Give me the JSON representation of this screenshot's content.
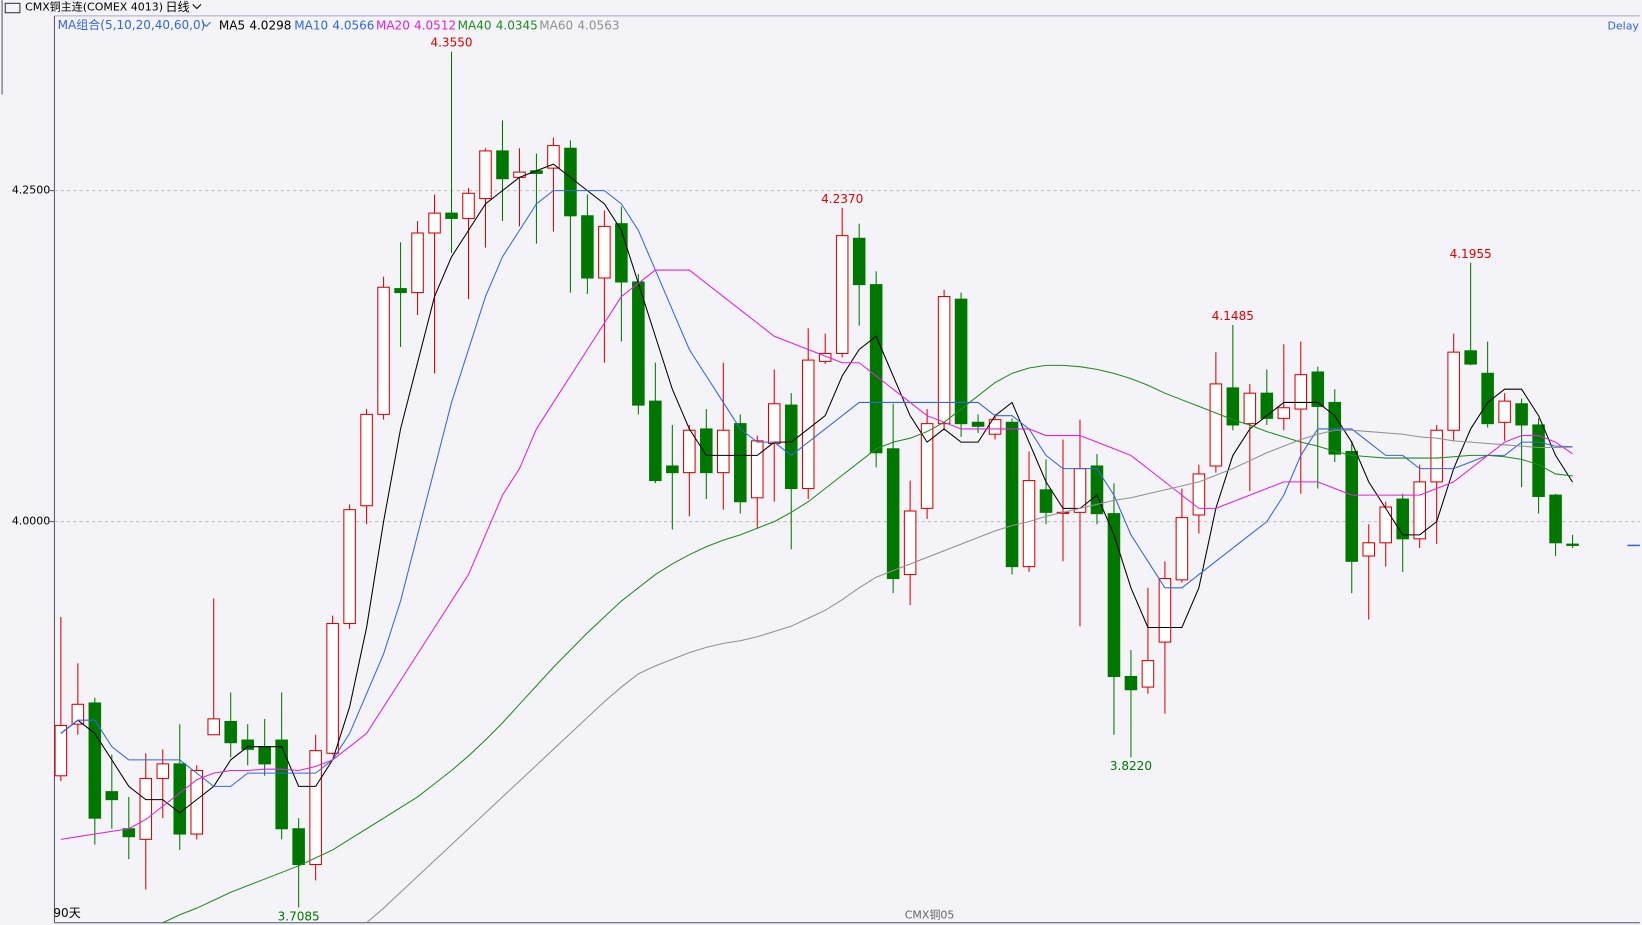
{
  "header": {
    "title": "CMX铜主连(COMEX 4013)",
    "period": "日线",
    "ma_group": "MA组合(5,10,20,40,60,0)",
    "delay": "Delay",
    "range": "90天",
    "contract": "CMX铜05"
  },
  "chart_data": {
    "type": "candlestick",
    "ylim": [
      3.697,
      4.382
    ],
    "yticks": [
      {
        "value": 4.0,
        "label": "4.0000"
      },
      {
        "value": 4.25,
        "label": "4.2500"
      }
    ],
    "grid": true,
    "up_color": "#e00000",
    "down_color": "#007800",
    "open": [
      3.808,
      3.847,
      3.863,
      3.796,
      3.768,
      3.76,
      3.806,
      3.817,
      3.764,
      3.839,
      3.849,
      3.835,
      3.83,
      3.835,
      3.768,
      3.741,
      3.825,
      3.923,
      4.012,
      4.081,
      4.176,
      4.173,
      4.218,
      4.233,
      4.229,
      4.244,
      4.28,
      4.26,
      4.265,
      4.267,
      4.282,
      4.231,
      4.184,
      4.225,
      4.181,
      4.091,
      4.042,
      4.037,
      4.07,
      4.037,
      4.074,
      4.018,
      4.059,
      4.088,
      4.025,
      4.121,
      4.127,
      4.214,
      4.179,
      4.055,
      3.96,
      4.01,
      4.074,
      4.168,
      4.075,
      4.066,
      4.075,
      3.966,
      4.024,
      4.007,
      4.007,
      4.042,
      4.006,
      3.883,
      3.875,
      3.909,
      3.956,
      4.005,
      4.042,
      4.101,
      4.074,
      4.097,
      4.078,
      4.085,
      4.113,
      4.09,
      4.053,
      3.974,
      3.984,
      4.017,
      3.987,
      4.03,
      4.069,
      4.129,
      4.112,
      4.075,
      4.089,
      4.073,
      4.02,
      3.983
    ],
    "high": [
      3.928,
      3.893,
      3.867,
      3.824,
      3.792,
      3.825,
      3.828,
      3.847,
      3.816,
      3.942,
      3.871,
      3.847,
      3.851,
      3.871,
      3.776,
      3.839,
      3.929,
      4.013,
      4.085,
      4.185,
      4.211,
      4.227,
      4.247,
      4.355,
      4.252,
      4.282,
      4.303,
      4.282,
      4.278,
      4.29,
      4.288,
      4.247,
      4.235,
      4.238,
      4.187,
      4.12,
      4.073,
      4.073,
      4.085,
      4.12,
      4.081,
      4.065,
      4.115,
      4.097,
      4.146,
      4.142,
      4.237,
      4.225,
      4.189,
      4.089,
      4.031,
      4.085,
      4.175,
      4.173,
      4.081,
      4.081,
      4.078,
      4.053,
      4.047,
      4.062,
      4.077,
      4.051,
      4.029,
      3.903,
      3.95,
      3.97,
      4.025,
      4.043,
      4.128,
      4.1485,
      4.104,
      4.115,
      4.134,
      4.136,
      4.117,
      4.1,
      4.061,
      3.998,
      4.015,
      4.021,
      4.043,
      4.073,
      4.142,
      4.1955,
      4.136,
      4.097,
      4.093,
      4.078,
      4.021,
      3.99
    ],
    "low": [
      3.804,
      3.839,
      3.756,
      3.768,
      3.745,
      3.722,
      3.776,
      3.752,
      3.76,
      3.839,
      3.822,
      3.816,
      3.808,
      3.76,
      3.7085,
      3.729,
      3.824,
      3.919,
      3.998,
      4.077,
      4.132,
      4.156,
      4.112,
      4.203,
      4.168,
      4.207,
      4.227,
      4.223,
      4.21,
      4.219,
      4.173,
      4.172,
      4.12,
      4.136,
      4.081,
      4.029,
      3.994,
      4.004,
      4.017,
      4.009,
      4.006,
      3.995,
      4.015,
      3.979,
      4.017,
      4.119,
      4.124,
      4.148,
      4.041,
      3.946,
      3.937,
      4.002,
      4.069,
      4.064,
      4.067,
      4.062,
      3.96,
      3.962,
      3.998,
      3.97,
      3.921,
      3.998,
      3.839,
      3.822,
      3.87,
      3.855,
      3.954,
      3.991,
      4.037,
      4.069,
      4.023,
      4.073,
      4.069,
      4.021,
      4.025,
      4.045,
      3.946,
      3.926,
      3.966,
      3.962,
      3.98,
      3.983,
      4.061,
      4.118,
      4.071,
      4.061,
      4.026,
      4.006,
      3.974,
      3.98
    ],
    "close": [
      3.846,
      3.862,
      3.776,
      3.79,
      3.762,
      3.806,
      3.817,
      3.764,
      3.812,
      3.851,
      3.833,
      3.828,
      3.817,
      3.768,
      3.741,
      3.827,
      3.923,
      4.009,
      4.081,
      4.177,
      4.173,
      4.218,
      4.233,
      4.229,
      4.248,
      4.28,
      4.259,
      4.264,
      4.263,
      4.284,
      4.231,
      4.184,
      4.223,
      4.181,
      4.088,
      4.031,
      4.037,
      4.069,
      4.037,
      4.069,
      4.015,
      4.061,
      4.089,
      4.025,
      4.122,
      4.127,
      4.216,
      4.179,
      4.052,
      3.957,
      4.008,
      4.074,
      4.17,
      4.074,
      4.072,
      4.077,
      3.966,
      4.031,
      4.007,
      4.007,
      4.04,
      4.006,
      3.883,
      3.873,
      3.895,
      3.957,
      4.003,
      4.036,
      4.104,
      4.073,
      4.097,
      4.078,
      4.086,
      4.111,
      4.087,
      4.051,
      3.97,
      3.984,
      4.011,
      3.987,
      4.03,
      4.069,
      4.128,
      4.119,
      4.074,
      4.091,
      4.073,
      4.019,
      3.984,
      3.982
    ],
    "high_labels": [
      null,
      null,
      null,
      null,
      null,
      null,
      null,
      null,
      null,
      null,
      null,
      null,
      null,
      null,
      null,
      null,
      null,
      null,
      null,
      null,
      null,
      null,
      null,
      "4.3550",
      null,
      null,
      null,
      null,
      null,
      null,
      null,
      null,
      null,
      null,
      null,
      null,
      null,
      null,
      null,
      null,
      null,
      null,
      null,
      null,
      null,
      null,
      "4.2370",
      null,
      null,
      null,
      null,
      null,
      null,
      null,
      null,
      null,
      null,
      null,
      null,
      null,
      null,
      null,
      null,
      null,
      null,
      null,
      null,
      null,
      null,
      "4.1485",
      null,
      null,
      null,
      null,
      null,
      null,
      null,
      null,
      null,
      null,
      null,
      null,
      null,
      "4.1955",
      null,
      null,
      null,
      null,
      null,
      null
    ],
    "low_labels": [
      null,
      null,
      null,
      null,
      null,
      null,
      null,
      null,
      null,
      null,
      null,
      null,
      null,
      null,
      "3.7085",
      null,
      null,
      null,
      null,
      null,
      null,
      null,
      null,
      null,
      null,
      null,
      null,
      null,
      null,
      null,
      null,
      null,
      null,
      null,
      null,
      null,
      null,
      null,
      null,
      null,
      null,
      null,
      null,
      null,
      null,
      null,
      null,
      null,
      null,
      null,
      null,
      null,
      null,
      null,
      null,
      null,
      null,
      null,
      null,
      null,
      null,
      null,
      null,
      "3.8220",
      null,
      null,
      null,
      null,
      null,
      null,
      null,
      null,
      null,
      null,
      null,
      null,
      null,
      null,
      null,
      null,
      null,
      null,
      null,
      null,
      null,
      null,
      null,
      null,
      null,
      null
    ],
    "series": [
      {
        "name": "MA5",
        "color": "#000000",
        "values": [
          3.84,
          3.85,
          3.84,
          3.82,
          3.8,
          3.79,
          3.79,
          3.78,
          3.79,
          3.8,
          3.82,
          3.83,
          3.83,
          3.83,
          3.8,
          3.8,
          3.82,
          3.86,
          3.92,
          4.0,
          4.07,
          4.12,
          4.17,
          4.2,
          4.22,
          4.24,
          4.25,
          4.26,
          4.265,
          4.27,
          4.26,
          4.25,
          4.24,
          4.22,
          4.18,
          4.14,
          4.1,
          4.07,
          4.05,
          4.05,
          4.05,
          4.05,
          4.06,
          4.06,
          4.07,
          4.08,
          4.11,
          4.13,
          4.14,
          4.11,
          4.08,
          4.06,
          4.07,
          4.06,
          4.06,
          4.08,
          4.09,
          4.06,
          4.03,
          4.01,
          4.01,
          4.02,
          3.99,
          3.95,
          3.92,
          3.92,
          3.92,
          3.95,
          4.01,
          4.05,
          4.07,
          4.08,
          4.09,
          4.09,
          4.09,
          4.08,
          4.06,
          4.03,
          4.01,
          3.99,
          3.99,
          4.0,
          4.04,
          4.07,
          4.09,
          4.1,
          4.1,
          4.08,
          4.05,
          4.0298
        ]
      },
      {
        "name": "MA10",
        "color": "#3366dd",
        "values": [
          3.84,
          3.85,
          3.85,
          3.83,
          3.82,
          3.82,
          3.82,
          3.82,
          3.81,
          3.8,
          3.8,
          3.81,
          3.81,
          3.81,
          3.81,
          3.81,
          3.82,
          3.84,
          3.87,
          3.9,
          3.94,
          3.99,
          4.04,
          4.09,
          4.13,
          4.17,
          4.2,
          4.22,
          4.24,
          4.25,
          4.25,
          4.25,
          4.25,
          4.24,
          4.22,
          4.19,
          4.16,
          4.13,
          4.11,
          4.09,
          4.07,
          4.06,
          4.06,
          4.05,
          4.06,
          4.07,
          4.08,
          4.09,
          4.09,
          4.09,
          4.09,
          4.09,
          4.09,
          4.09,
          4.09,
          4.08,
          4.08,
          4.07,
          4.05,
          4.04,
          4.04,
          4.04,
          4.02,
          3.99,
          3.97,
          3.95,
          3.95,
          3.96,
          3.97,
          3.98,
          3.99,
          4.0,
          4.02,
          4.05,
          4.07,
          4.07,
          4.07,
          4.06,
          4.05,
          4.05,
          4.04,
          4.04,
          4.04,
          4.045,
          4.05,
          4.05,
          4.06,
          4.06,
          4.057,
          4.0566
        ]
      },
      {
        "name": "MA20",
        "color": "#e020e0",
        "values": [
          3.76,
          3.762,
          3.764,
          3.766,
          3.768,
          3.775,
          3.785,
          3.795,
          3.805,
          3.81,
          3.812,
          3.812,
          3.813,
          3.813,
          3.812,
          3.815,
          3.82,
          3.83,
          3.84,
          3.86,
          3.88,
          3.9,
          3.92,
          3.94,
          3.96,
          3.99,
          4.02,
          4.04,
          4.07,
          4.09,
          4.11,
          4.13,
          4.15,
          4.17,
          4.18,
          4.19,
          4.19,
          4.19,
          4.18,
          4.17,
          4.16,
          4.15,
          4.14,
          4.135,
          4.13,
          4.125,
          4.12,
          4.12,
          4.11,
          4.1,
          4.09,
          4.08,
          4.075,
          4.07,
          4.07,
          4.07,
          4.07,
          4.07,
          4.065,
          4.065,
          4.065,
          4.06,
          4.055,
          4.05,
          4.04,
          4.03,
          4.02,
          4.01,
          4.01,
          4.015,
          4.02,
          4.025,
          4.03,
          4.03,
          4.03,
          4.025,
          4.02,
          4.02,
          4.02,
          4.02,
          4.02,
          4.025,
          4.03,
          4.04,
          4.05,
          4.06,
          4.065,
          4.065,
          4.06,
          4.0512
        ]
      },
      {
        "name": "MA40",
        "color": "#208a20",
        "values": [
          null,
          null,
          null,
          null,
          null,
          null,
          3.697,
          3.703,
          3.708,
          3.714,
          3.72,
          3.725,
          3.73,
          3.735,
          3.74,
          3.746,
          3.752,
          3.76,
          3.768,
          3.776,
          3.784,
          3.792,
          3.802,
          3.812,
          3.823,
          3.835,
          3.848,
          3.862,
          3.876,
          3.89,
          3.903,
          3.916,
          3.928,
          3.94,
          3.95,
          3.96,
          3.968,
          3.975,
          3.981,
          3.986,
          3.99,
          3.995,
          4.0,
          4.007,
          4.015,
          4.025,
          4.035,
          4.045,
          4.055,
          4.06,
          4.063,
          4.068,
          4.075,
          4.085,
          4.095,
          4.105,
          4.112,
          4.116,
          4.118,
          4.118,
          4.117,
          4.115,
          4.112,
          4.108,
          4.103,
          4.097,
          4.092,
          4.087,
          4.082,
          4.077,
          4.073,
          4.068,
          4.064,
          4.06,
          4.057,
          4.053,
          4.05,
          4.049,
          4.048,
          4.048,
          4.048,
          4.048,
          4.049,
          4.05,
          4.05,
          4.049,
          4.047,
          4.043,
          4.036,
          4.0345
        ]
      },
      {
        "name": "MA60",
        "color": "#909090",
        "values": [
          null,
          null,
          null,
          null,
          null,
          null,
          null,
          null,
          null,
          null,
          null,
          null,
          null,
          null,
          null,
          null,
          null,
          null,
          3.697,
          3.708,
          3.72,
          3.732,
          3.744,
          3.756,
          3.768,
          3.78,
          3.792,
          3.804,
          3.816,
          3.828,
          3.84,
          3.852,
          3.864,
          3.875,
          3.885,
          3.891,
          3.896,
          3.901,
          3.905,
          3.908,
          3.91,
          3.913,
          3.917,
          3.921,
          3.927,
          3.933,
          3.941,
          3.95,
          3.958,
          3.963,
          3.968,
          3.973,
          3.978,
          3.983,
          3.988,
          3.993,
          3.997,
          4.0,
          4.004,
          4.007,
          4.01,
          4.013,
          4.016,
          4.018,
          4.021,
          4.024,
          4.027,
          4.03,
          4.035,
          4.04,
          4.046,
          4.052,
          4.057,
          4.062,
          4.066,
          4.069,
          4.069,
          4.068,
          4.067,
          4.066,
          4.064,
          4.063,
          4.061,
          4.06,
          4.059,
          4.058,
          4.057,
          4.056,
          4.056,
          4.0563
        ]
      }
    ]
  }
}
